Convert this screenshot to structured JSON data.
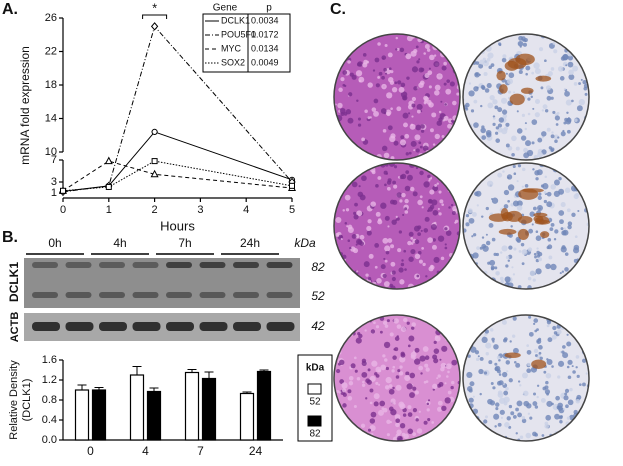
{
  "panels": {
    "a": "A.",
    "b": "B.",
    "c": "C."
  },
  "blot": {
    "timepoints": [
      "0h",
      "4h",
      "7h",
      "24h"
    ],
    "unit": "kDa",
    "proteins": [
      "DCLK1",
      "ACTB"
    ],
    "sizes": [
      "82",
      "52",
      "42"
    ]
  },
  "chart_data": [
    {
      "type": "line",
      "x_label": "Hours",
      "y_label": "mRNA fold expression",
      "x": [
        0,
        1,
        2,
        5
      ],
      "xlim": [
        0,
        5
      ],
      "xticks": [
        0,
        1,
        2,
        3,
        4,
        5
      ],
      "ylim": [
        1,
        26
      ],
      "axis_break": [
        7,
        10
      ],
      "yticks": [
        1,
        3,
        7,
        10,
        14,
        18,
        22,
        26
      ],
      "legend_headers": [
        "Gene",
        "p"
      ],
      "annotation": "*",
      "series": [
        {
          "name": "DCLK1",
          "p": "0.0034",
          "color": "#000000",
          "dash": "",
          "marker": "circle",
          "values": [
            1.3,
            2.3,
            12.4,
            3.4
          ]
        },
        {
          "name": "POU5F1",
          "p": "0.0172",
          "color": "#000000",
          "dash": "5 2 1 2",
          "marker": "diamond",
          "values": [
            1.2,
            2.3,
            25,
            3.0
          ]
        },
        {
          "name": "MYC",
          "p": "0.0134",
          "color": "#000000",
          "dash": "4 3",
          "marker": "triangle",
          "values": [
            1.4,
            6.8,
            4.4,
            1.9
          ]
        },
        {
          "name": "SOX2",
          "p": "0.0049",
          "color": "#000000",
          "dash": "1.5 1.5",
          "marker": "square",
          "values": [
            1.4,
            2.1,
            6.8,
            2.3
          ]
        }
      ]
    },
    {
      "type": "bar",
      "y_label": [
        "Relative Density",
        "(DCLK1)"
      ],
      "legend_title": "kDa",
      "categories": [
        "0",
        "4",
        "7",
        "24"
      ],
      "ylim": [
        0,
        1.6
      ],
      "yticks": [
        {
          "value": 0,
          "label": "0.0"
        },
        {
          "value": 0.4,
          "label": "0.4"
        },
        {
          "value": 0.8,
          "label": "0.8"
        },
        {
          "value": 1.2,
          "label": "1.2"
        },
        {
          "value": 1.6,
          "label": "1.6"
        }
      ],
      "series": [
        {
          "name": "52",
          "color": "#ffffff",
          "values": [
            1.0,
            1.3,
            1.35,
            0.93
          ],
          "errors": [
            0.1,
            0.17,
            0.06,
            0.03
          ]
        },
        {
          "name": "82",
          "color": "#000000",
          "values": [
            1.0,
            0.97,
            1.23,
            1.37
          ],
          "errors": [
            0.05,
            0.07,
            0.13,
            0.03
          ]
        }
      ]
    }
  ]
}
